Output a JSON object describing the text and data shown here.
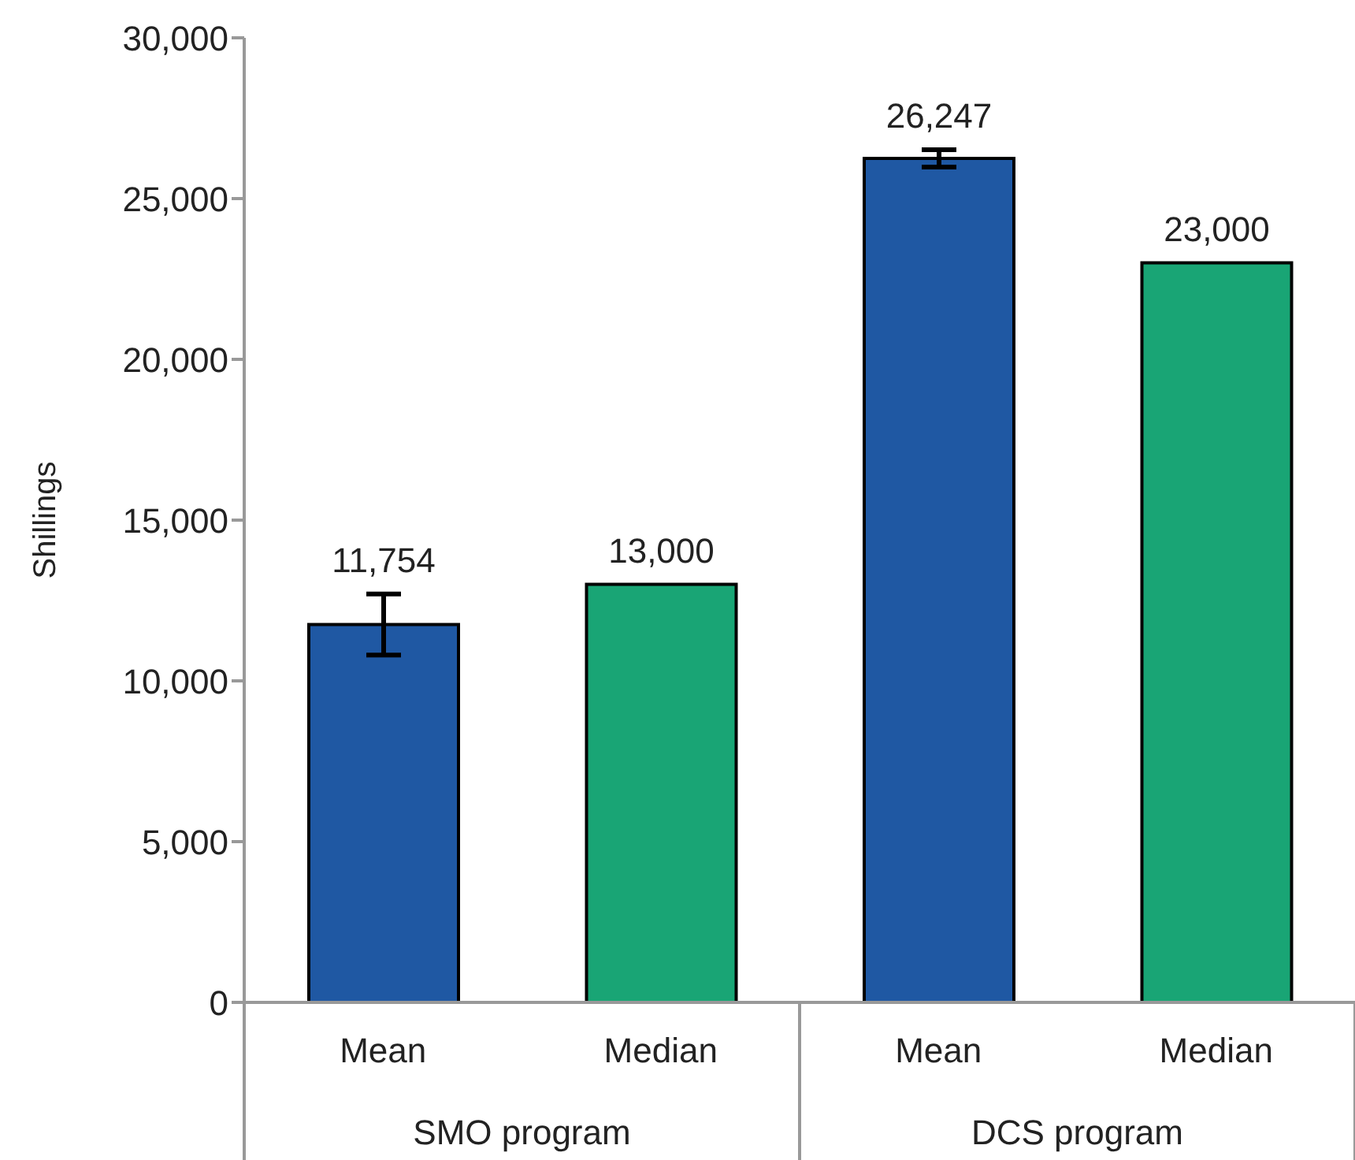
{
  "chart_data": {
    "type": "bar",
    "ylabel": "Shillings",
    "categories": [
      "Mean",
      "Median",
      "Mean",
      "Median"
    ],
    "values": [
      11754,
      13000,
      26247,
      23000
    ],
    "colors": [
      "#1f58a3",
      "#19a575",
      "#1f58a3",
      "#19a575"
    ],
    "errors": [
      [
        10800,
        12700
      ],
      null,
      [
        25980,
        26520
      ],
      null
    ],
    "value_labels": [
      "11,754",
      "13,000",
      "26,247",
      "23,000"
    ],
    "annotations": [
      "SMO program",
      "DCS program"
    ],
    "ylim": [
      0,
      30000
    ],
    "yticks": [
      {
        "value": 0,
        "label": "0"
      },
      {
        "value": 5000,
        "label": "5,000"
      },
      {
        "value": 10000,
        "label": "10,000"
      },
      {
        "value": 15000,
        "label": "15,000"
      },
      {
        "value": 20000,
        "label": "20,000"
      },
      {
        "value": 25000,
        "label": "25,000"
      },
      {
        "value": 30000,
        "label": "30,000"
      }
    ],
    "grid": false,
    "legend": false
  }
}
